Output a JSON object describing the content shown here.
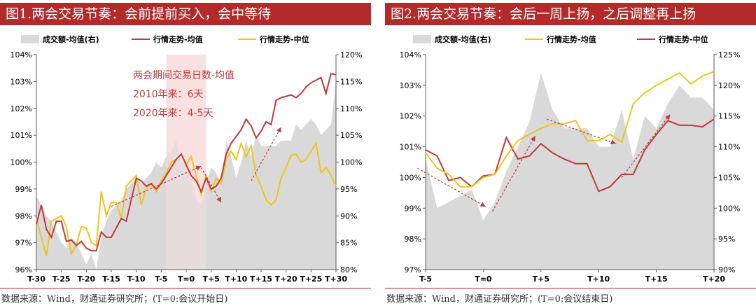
{
  "colors": {
    "title_bg": "#b32a2a",
    "volume": "#d9d9d9",
    "red_line": "#c0393b",
    "gold_line": "#f2c417",
    "annot_box": "#f8dede",
    "arrow": "#c0393b",
    "annot_text": "#c0393b"
  },
  "chart_data": [
    {
      "title": "图1.两会交易节奏：会前提前买入，会中等待",
      "type": "line",
      "source": "数据来源：Wind，财通证券研究所；(T=0:会议开始日)",
      "legend": [
        "成交额-均值(右)",
        "行情走势-均值",
        "行情走势-中位"
      ],
      "legend_placement": "top",
      "x_tick_labels": [
        "T-30",
        "T-25",
        "T-20",
        "T-15",
        "T-10",
        "T-5",
        "T=0",
        "T+5",
        "T+10",
        "T+15",
        "T+20",
        "T+25",
        "T+30"
      ],
      "left_axis": {
        "ticks": [
          "96%",
          "97%",
          "98%",
          "99%",
          "100%",
          "101%",
          "102%",
          "103%",
          "104%"
        ],
        "min": 96,
        "max": 104
      },
      "right_axis": {
        "ticks": [
          "80%",
          "85%",
          "90%",
          "95%",
          "100%",
          "105%",
          "110%",
          "115%",
          "120%"
        ],
        "min": 80,
        "max": 120
      },
      "x": [
        -30,
        -29,
        -28,
        -27,
        -26,
        -25,
        -24,
        -23,
        -22,
        -21,
        -20,
        -19,
        -18,
        -17,
        -16,
        -15,
        -14,
        -13,
        -12,
        -11,
        -10,
        -9,
        -8,
        -7,
        -6,
        -5,
        -4,
        -3,
        -2,
        -1,
        0,
        1,
        2,
        3,
        4,
        5,
        6,
        7,
        8,
        9,
        10,
        11,
        12,
        13,
        14,
        15,
        16,
        17,
        18,
        19,
        20,
        21,
        22,
        23,
        24,
        25,
        26,
        27,
        28,
        29,
        30
      ],
      "series": [
        {
          "name": "成交额-均值(右)",
          "axis": "right",
          "values": [
            93.5,
            92,
            90,
            89,
            87,
            85,
            84,
            86,
            85,
            83,
            81,
            83,
            80,
            86,
            89,
            91,
            92,
            93,
            95,
            96,
            97,
            96,
            97,
            98,
            100,
            99,
            101,
            102,
            104,
            100,
            100,
            97,
            93,
            92,
            96,
            99,
            98,
            96,
            104,
            101,
            97,
            100,
            104,
            101,
            105,
            103,
            103,
            103,
            103,
            104,
            104,
            104,
            107,
            106,
            107,
            108,
            107,
            105,
            106,
            107,
            115
          ]
        },
        {
          "name": "行情走势-均值",
          "axis": "left",
          "values": [
            97.7,
            98.4,
            97.5,
            97.2,
            97.8,
            97.8,
            97.05,
            97.1,
            96.9,
            97.05,
            96.8,
            96.7,
            96.7,
            97.4,
            97.2,
            97.2,
            97.55,
            97.9,
            97.8,
            98.6,
            99.4,
            99.3,
            99.1,
            99.2,
            99.0,
            99.2,
            99.5,
            99.8,
            100.1,
            100.3,
            99.9,
            99.5,
            99.3,
            98.9,
            99.4,
            99.0,
            99.1,
            99.4,
            100.3,
            100.7,
            100.95,
            101.2,
            101.6,
            101.35,
            100.9,
            101.15,
            101.5,
            101.4,
            102.3,
            102.4,
            102.45,
            102.5,
            102.4,
            102.55,
            102.8,
            102.95,
            103.05,
            103.15,
            102.55,
            103.3,
            103.25
          ]
        },
        {
          "name": "行情走势-中位",
          "axis": "left",
          "values": [
            97.9,
            97.2,
            96.5,
            97.8,
            97.9,
            98.0,
            97.6,
            96.6,
            96.9,
            97.6,
            97.55,
            97.0,
            96.9,
            98.9,
            98.0,
            98.5,
            98.5,
            97.9,
            99.1,
            99.3,
            99.5,
            98.4,
            99.0,
            99.2,
            98.9,
            99.3,
            99.6,
            100.0,
            100.1,
            100.3,
            99.9,
            100.2,
            99.5,
            98.8,
            99.5,
            98.9,
            99.4,
            99.2,
            100.1,
            100.4,
            100.1,
            100.7,
            100.2,
            100.6,
            99.5,
            99.1,
            98.6,
            98.4,
            98.6,
            99.4,
            99.8,
            100.25,
            100.3,
            100.0,
            100.1,
            100.4,
            100.7,
            99.6,
            99.8,
            99.5,
            99.1
          ]
        }
      ],
      "annotation": {
        "lines": [
          "两会期间交易日数-均值",
          "2010年来：6天",
          "2020年来：4-5天"
        ]
      }
    },
    {
      "title": "图2.两会交易节奏：会后一周上扬，之后调整再上扬",
      "type": "line",
      "source": "数据来源：Wind，财通证券研究所；(T=0:会议结束日)",
      "legend": [
        "成交额-均值(右)",
        "行情走势-均值",
        "行情走势-中位"
      ],
      "legend_placement": "top",
      "x_tick_labels": [
        "T-5",
        "T=0",
        "T+5",
        "T+10",
        "T+15",
        "T+20"
      ],
      "left_axis": {
        "ticks": [
          "97%",
          "98%",
          "99%",
          "100%",
          "101%",
          "102%",
          "103%",
          "104%"
        ],
        "min": 97,
        "max": 104
      },
      "right_axis": {
        "ticks": [
          "90%",
          "95%",
          "100%",
          "105%",
          "110%",
          "115%",
          "120%",
          "125%"
        ],
        "min": 90,
        "max": 125
      },
      "x": [
        -5,
        -4,
        -3,
        -2,
        -1,
        0,
        1,
        2,
        3,
        4,
        5,
        6,
        7,
        8,
        9,
        10,
        11,
        12,
        13,
        14,
        15,
        16,
        17,
        18,
        19,
        20
      ],
      "series": [
        {
          "name": "成交额-均值(右)",
          "axis": "right",
          "values": [
            108,
            100,
            101,
            102,
            103,
            98,
            101,
            106,
            110,
            114,
            122,
            116,
            113,
            113,
            113,
            110,
            110,
            116,
            108,
            115,
            113,
            117,
            120,
            118,
            118,
            116
          ]
        },
        {
          "name": "行情走势-均值",
          "axis": "left",
          "values": [
            100.8,
            100.3,
            100.1,
            99.7,
            99.7,
            100.0,
            100.1,
            100.7,
            101.2,
            101.4,
            101.6,
            101.75,
            101.75,
            101.85,
            101.2,
            101.2,
            101.4,
            101.15,
            102.4,
            102.75,
            103.0,
            103.2,
            103.4,
            103.05,
            103.3,
            103.45
          ]
        },
        {
          "name": "行情走势-中位",
          "axis": "left",
          "values": [
            100.9,
            100.7,
            99.9,
            100.0,
            99.7,
            100.05,
            100.1,
            101.3,
            100.6,
            100.7,
            101.1,
            100.8,
            100.6,
            100.45,
            100.45,
            99.55,
            99.7,
            100.1,
            100.1,
            100.9,
            101.4,
            101.85,
            101.7,
            101.7,
            101.65,
            101.9
          ]
        }
      ]
    }
  ]
}
